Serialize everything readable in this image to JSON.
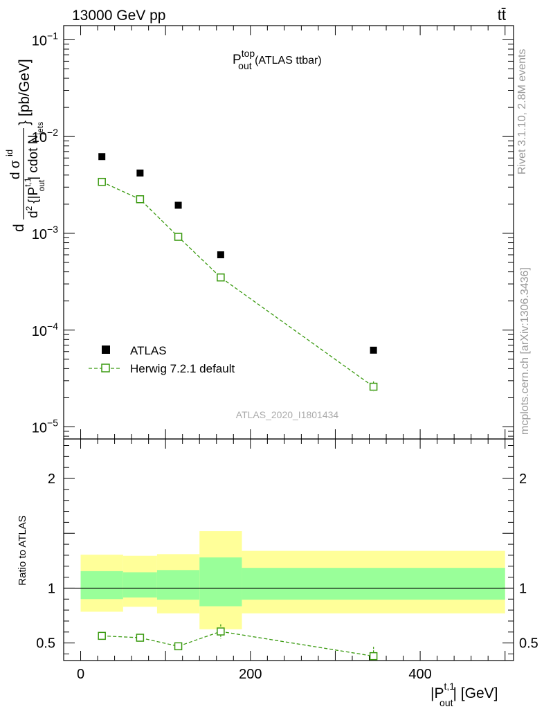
{
  "header": {
    "energy_label": "13000 GeV pp",
    "process_label": "tt̄"
  },
  "side_text": {
    "rivet": "Rivet 3.1.10,  2.8M events",
    "mcplots": "mcplots.cern.ch [arXiv:1306.3436]"
  },
  "chart_data": [
    {
      "type": "scatter",
      "title_main": "P",
      "title_sup": "top",
      "title_sub": "out",
      "title_rest": " (ATLAS ttbar)",
      "analysis_id": "ATLAS_2020_I1801434",
      "ylabel": "d σ^{id} / d^2 {|P_out^{t,1}| cdot N_jets} [pb/GeV]",
      "ylabel_parts": {
        "d_left": "d",
        "numerator": "d σ",
        "numerator_sup": "id",
        "denominator_d2": "d",
        "denominator_open": "{|P",
        "denominator_sup": "t,1",
        "denominator_sub": "out",
        "denominator_close": "| cdot N",
        "denominator_sub2": "jets",
        "brace_unit": "} [pb/GeV]"
      },
      "yscale": "log",
      "ylim": [
        7.5e-06,
        0.14
      ],
      "xlim": [
        -20,
        510
      ],
      "y_ticks": [
        {
          "value": 1e-05,
          "base": "10",
          "exp": "−5"
        },
        {
          "value": 0.0001,
          "base": "10",
          "exp": "−4"
        },
        {
          "value": 0.001,
          "base": "10",
          "exp": "−3"
        },
        {
          "value": 0.01,
          "base": "10",
          "exp": "−2"
        },
        {
          "value": 0.1,
          "base": "10",
          "exp": "−1"
        }
      ],
      "series": [
        {
          "name": "ATLAS",
          "color": "#000000",
          "marker": "filled-square",
          "x": [
            25,
            70,
            115,
            165,
            345
          ],
          "y": [
            0.0062,
            0.0042,
            0.00195,
            0.0006,
            6.2e-05
          ]
        },
        {
          "name": "Herwig 7.2.1 default",
          "color": "#3a9a10",
          "marker": "open-square",
          "line": "dashed",
          "x": [
            25,
            70,
            115,
            165,
            345
          ],
          "y": [
            0.0034,
            0.00225,
            0.00092,
            0.00035,
            2.6e-05
          ],
          "yerr_low": [
            0,
            0,
            0,
            0,
            3e-06
          ],
          "yerr_high": [
            0,
            0,
            0,
            0,
            3.5e-06
          ]
        }
      ],
      "legend_position": "bottom-left"
    },
    {
      "type": "scatter",
      "ylabel": "Ratio to ATLAS",
      "xlabel_main": "|P",
      "xlabel_sup": "t,1",
      "xlabel_sub": "out",
      "xlabel_rest": "| [GeV]",
      "xlim": [
        -20,
        510
      ],
      "ylim": [
        0.34,
        2.36
      ],
      "x_ticks": [
        "0",
        "200",
        "400"
      ],
      "y_ticks": [
        "0.5",
        "1",
        "2"
      ],
      "bands": {
        "bins": [
          [
            0,
            50
          ],
          [
            50,
            90
          ],
          [
            90,
            140
          ],
          [
            140,
            190
          ],
          [
            190,
            500
          ]
        ],
        "stat_low": [
          0.9,
          0.915,
          0.895,
          0.835,
          0.895
        ],
        "stat_high": [
          1.155,
          1.145,
          1.165,
          1.28,
          1.185
        ],
        "total_low": [
          0.785,
          0.83,
          0.77,
          0.625,
          0.77
        ],
        "total_high": [
          1.305,
          1.295,
          1.31,
          1.52,
          1.34
        ],
        "stat_color": "#99ff99",
        "total_color": "#ffff99"
      },
      "series": [
        {
          "name": "Herwig 7.2.1 default",
          "color": "#3a9a10",
          "x": [
            25,
            70,
            115,
            165,
            345
          ],
          "y": [
            0.565,
            0.548,
            0.47,
            0.605,
            0.38
          ],
          "yerr_low": [
            0.01,
            0.025,
            0.03,
            0.065,
            0.03
          ],
          "yerr_high": [
            0.01,
            0.025,
            0.03,
            0.065,
            0.085
          ]
        }
      ]
    }
  ]
}
